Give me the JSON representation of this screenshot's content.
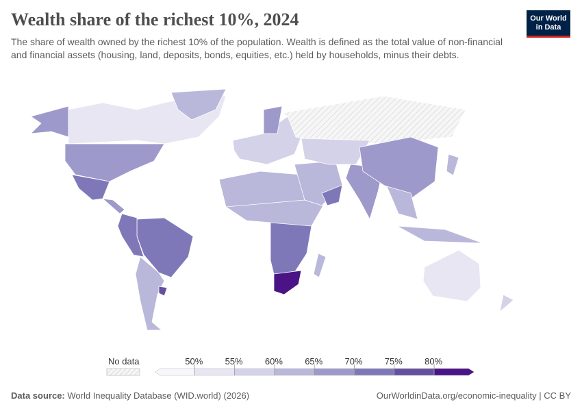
{
  "title": "Wealth share of the richest 10%, 2024",
  "subtitle": "The share of wealth owned by the richest 10% of the population. Wealth is defined as the total value of non-financial and financial assets (housing, land, deposits, bonds, equities, etc.) held by households, minus their debts.",
  "logo": {
    "line1": "Our World",
    "line2": "in Data"
  },
  "legend": {
    "no_data_label": "No data",
    "ticks": [
      "50%",
      "55%",
      "60%",
      "65%",
      "70%",
      "75%",
      "80%"
    ],
    "bin_colors": [
      "#f7f7fb",
      "#e7e6f2",
      "#d3d2e8",
      "#b9b7da",
      "#9d99ca",
      "#7f78b8",
      "#654f9f",
      "#4a1486"
    ]
  },
  "map": {
    "no_data_color": "#f2f2f2",
    "regions": [
      {
        "name": "Canada",
        "bin": 1
      },
      {
        "name": "United States",
        "bin": 4
      },
      {
        "name": "Alaska",
        "bin": 4
      },
      {
        "name": "Mexico",
        "bin": 5
      },
      {
        "name": "Greenland",
        "bin": 3
      },
      {
        "name": "Central America",
        "bin": 4
      },
      {
        "name": "Brazil",
        "bin": 5
      },
      {
        "name": "Andean countries",
        "bin": 5
      },
      {
        "name": "Argentina and Chile",
        "bin": 3
      },
      {
        "name": "Uruguay",
        "bin": 6
      },
      {
        "name": "Europe",
        "bin": 2
      },
      {
        "name": "Scandinavia",
        "bin": 4
      },
      {
        "name": "Russia",
        "bin": -1
      },
      {
        "name": "North Africa",
        "bin": 3
      },
      {
        "name": "Central Africa",
        "bin": 3
      },
      {
        "name": "Southern Africa",
        "bin": 5
      },
      {
        "name": "South Africa",
        "bin": 7
      },
      {
        "name": "Madagascar",
        "bin": 3
      },
      {
        "name": "Middle East",
        "bin": 3
      },
      {
        "name": "Oman",
        "bin": 5
      },
      {
        "name": "Central Asia",
        "bin": 2
      },
      {
        "name": "India",
        "bin": 4
      },
      {
        "name": "China",
        "bin": 4
      },
      {
        "name": "Southeast Asia",
        "bin": 3
      },
      {
        "name": "Indonesia",
        "bin": 3
      },
      {
        "name": "Australia",
        "bin": 1
      },
      {
        "name": "New Zealand",
        "bin": 2
      },
      {
        "name": "Japan",
        "bin": 3
      }
    ]
  },
  "footer": {
    "source_label": "Data source:",
    "source": "World Inequality Database (WID.world) (2026)",
    "url": "OurWorldinData.org/economic-inequality | CC BY"
  }
}
